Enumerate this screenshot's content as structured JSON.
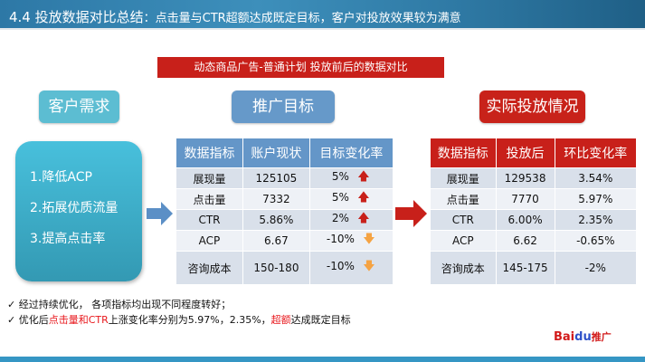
{
  "header": {
    "section": "4.4 投放数据对比总结",
    "subtitle": "：点击量与CTR超额达成既定目标，客户对投放效果较为满意"
  },
  "banner": "动态商品广告-普通计划 投放前后的数据对比",
  "pills": {
    "needs": "客户需求",
    "goals": "推广目标",
    "actual": "实际投放情况"
  },
  "needs": [
    "1.降低ACP",
    "2.拓展优质流量",
    "3.提高点击率"
  ],
  "goal_table": {
    "headers": [
      "数据指标",
      "账户现状",
      "目标变化率"
    ],
    "rows": [
      [
        "展现量",
        "125105",
        "5%",
        "up"
      ],
      [
        "点击量",
        "7332",
        "5%",
        "up"
      ],
      [
        "CTR",
        "5.86%",
        "2%",
        "up"
      ],
      [
        "ACP",
        "6.67",
        "-10%",
        "down"
      ],
      [
        "咨询成本",
        "150-180",
        "-10%",
        "down"
      ]
    ]
  },
  "actual_table": {
    "headers": [
      "数据指标",
      "投放后",
      "环比变化率"
    ],
    "rows": [
      [
        "展现量",
        "129538",
        "3.54%"
      ],
      [
        "点击量",
        "7770",
        "5.97%"
      ],
      [
        "CTR",
        "6.00%",
        "2.35%"
      ],
      [
        "ACP",
        "6.62",
        "-0.65%"
      ],
      [
        "咨询成本",
        "145-175",
        "-2%"
      ]
    ]
  },
  "notes": {
    "line1": "✓ 经过持续优化， 各项指标均出现不同程度转好；",
    "l2a": "✓ 优化后",
    "l2b": "点击量和CTR",
    "l2c": "上涨变化率分别为5.97%，2.35%，",
    "l2d": "超额",
    "l2e": "达成既定目标"
  },
  "logo": {
    "bai": "Bai",
    "du": "du",
    "tuiguang": "推广"
  },
  "colors": {
    "blue_accent": "#6496c8",
    "red_accent": "#c8201a",
    "cyan": "#48c0dc"
  }
}
